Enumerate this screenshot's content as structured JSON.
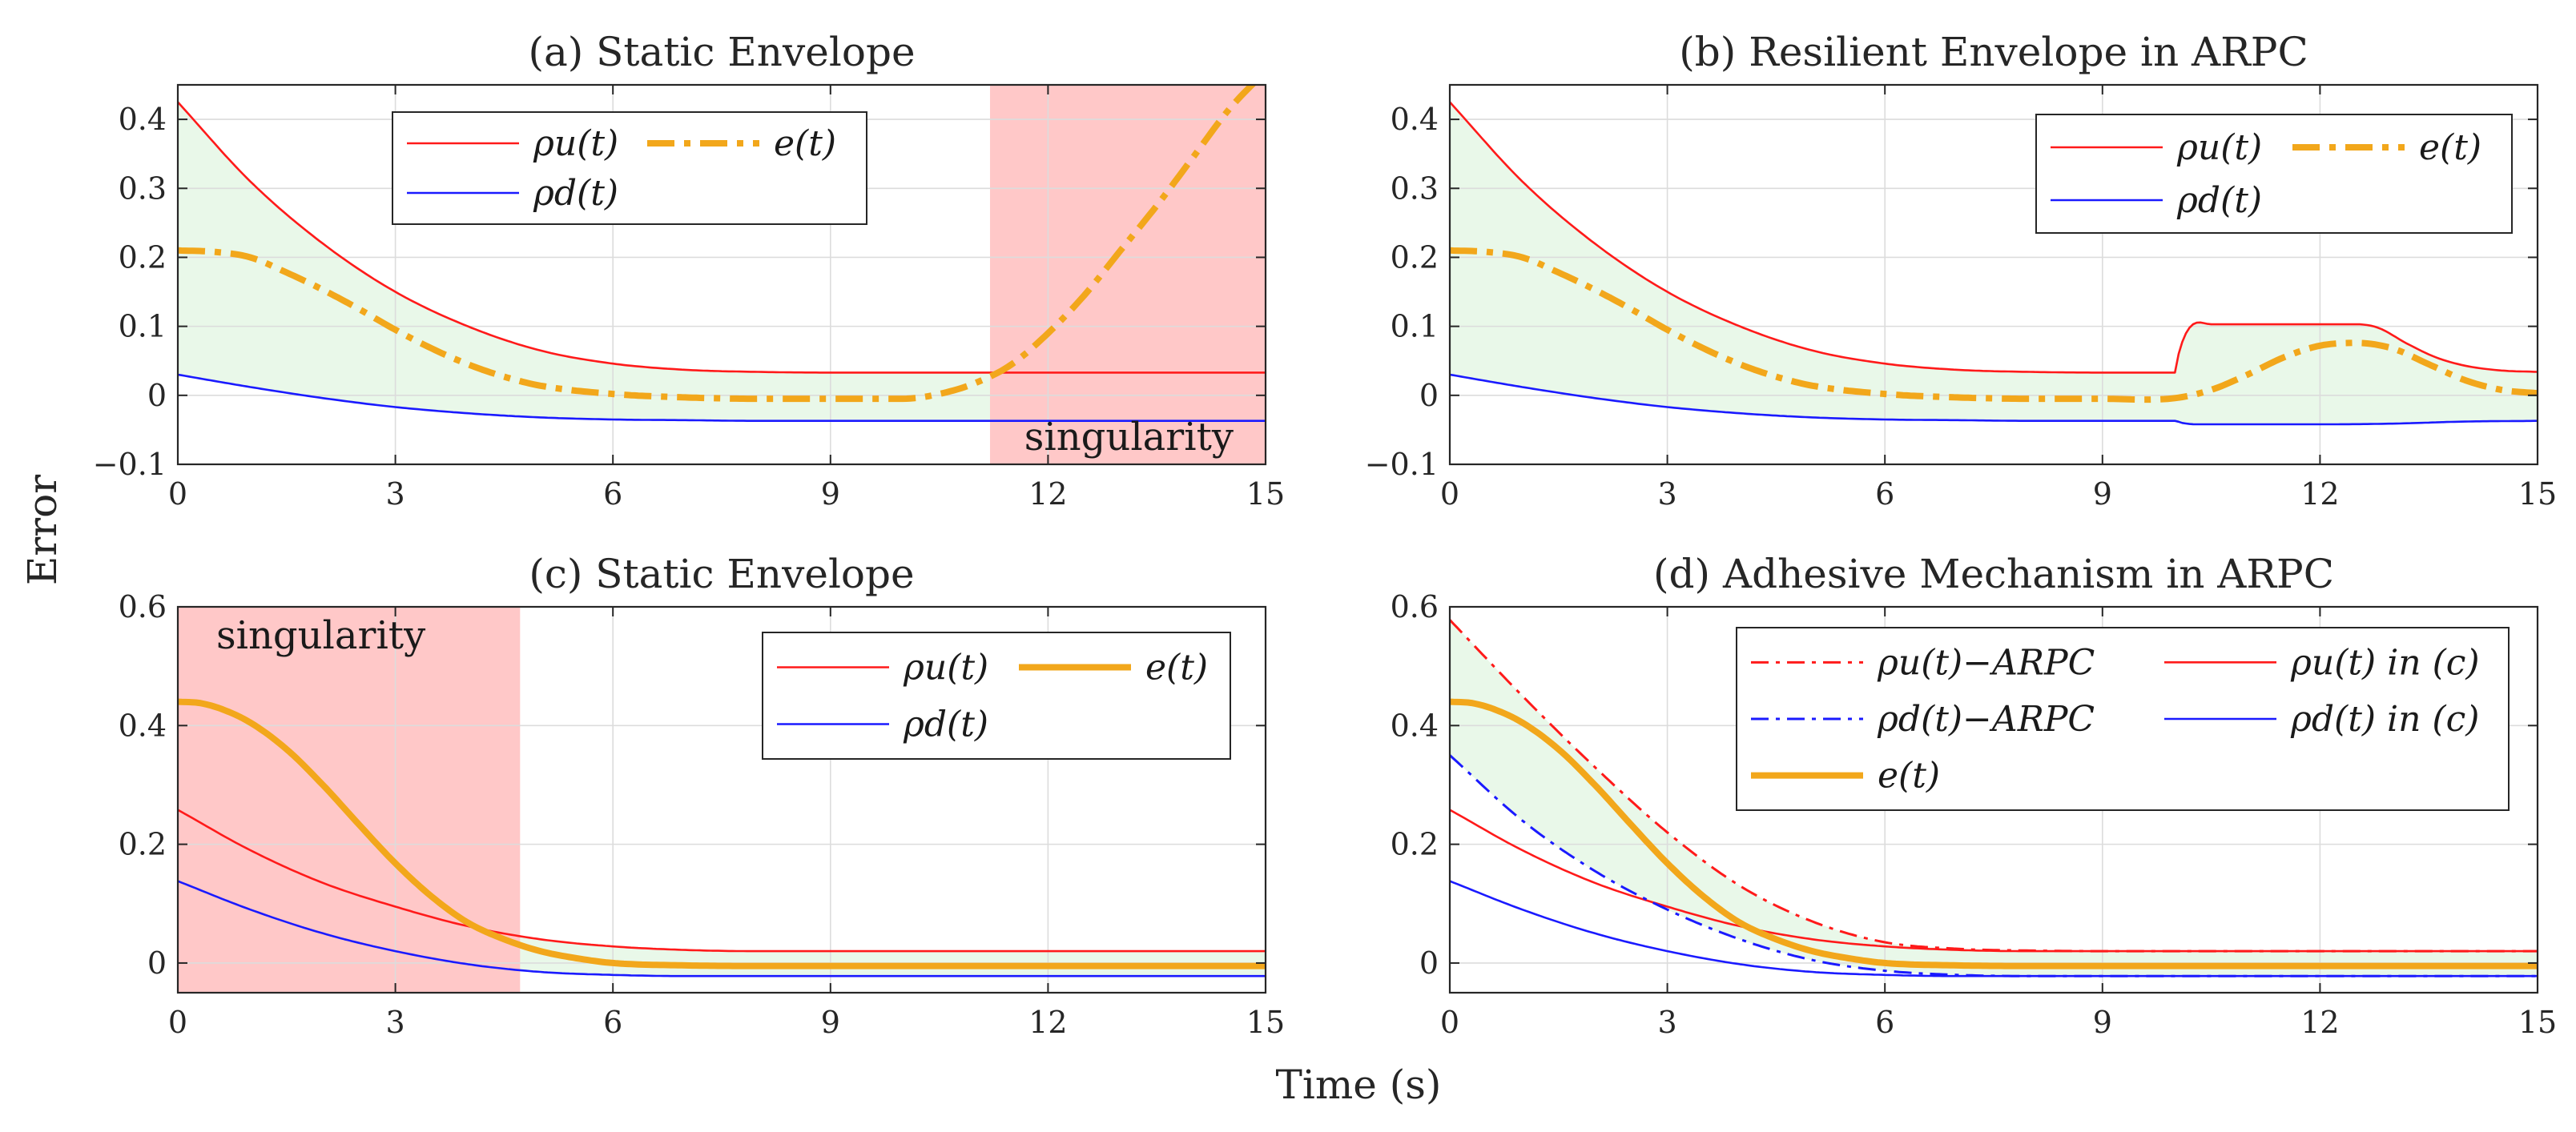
{
  "figure": {
    "ylabel": "Error",
    "xlabel": "Time (s)"
  },
  "colors": {
    "red": "#ff1a1a",
    "blue": "#1a1aff",
    "orange": "#f2a71b",
    "green_fill": "#e9f8e9",
    "singular_fill": "#ffc8c8"
  },
  "chart_data": [
    {
      "id": "a",
      "type": "line",
      "title": "(a) Static Envelope",
      "xlim": [
        0,
        15
      ],
      "ylim": [
        -0.1,
        0.45
      ],
      "xticks": [
        0,
        3,
        6,
        9,
        12,
        15
      ],
      "yticks": [
        -0.1,
        0,
        0.1,
        0.2,
        0.3,
        0.4
      ],
      "ytick_labels": [
        "−0.1",
        "0",
        "0.1",
        "0.2",
        "0.3",
        "0.4"
      ],
      "singularity": {
        "x0": 11.2,
        "x1": 15,
        "label": "singularity",
        "label_pos": "bottom-right"
      },
      "legend": {
        "position": "top-center",
        "entries": [
          [
            "ρu(t)",
            "e(t)"
          ],
          [
            "ρd(t)"
          ]
        ]
      },
      "series": [
        {
          "name": "ρu(t)",
          "color": "red",
          "style": "thin",
          "x": [
            0,
            1,
            2,
            3,
            4,
            5,
            6,
            7,
            8,
            9,
            10,
            11,
            12,
            13,
            14,
            15
          ],
          "y": [
            0.425,
            0.31,
            0.22,
            0.15,
            0.1,
            0.065,
            0.046,
            0.037,
            0.034,
            0.033,
            0.033,
            0.033,
            0.033,
            0.033,
            0.033,
            0.033
          ]
        },
        {
          "name": "ρd(t)",
          "color": "blue",
          "style": "thin",
          "x": [
            0,
            1,
            2,
            3,
            4,
            5,
            6,
            7,
            8,
            9,
            10,
            11,
            12,
            13,
            14,
            15
          ],
          "y": [
            0.03,
            0.012,
            -0.004,
            -0.017,
            -0.026,
            -0.032,
            -0.035,
            -0.036,
            -0.037,
            -0.037,
            -0.037,
            -0.037,
            -0.037,
            -0.037,
            -0.037,
            -0.037
          ]
        },
        {
          "name": "e(t)",
          "color": "orange",
          "style": "dashdot-thick",
          "x": [
            0,
            0.5,
            1,
            1.5,
            2,
            2.5,
            3,
            3.5,
            4,
            4.5,
            5,
            6,
            7,
            8,
            9,
            10,
            10.5,
            11,
            11.5,
            12,
            12.5,
            13,
            13.5,
            14,
            14.5,
            15
          ],
          "y": [
            0.21,
            0.208,
            0.2,
            0.178,
            0.153,
            0.125,
            0.095,
            0.068,
            0.045,
            0.027,
            0.014,
            0.002,
            -0.003,
            -0.005,
            -0.005,
            -0.005,
            0.002,
            0.018,
            0.045,
            0.09,
            0.145,
            0.21,
            0.275,
            0.345,
            0.415,
            0.47
          ]
        }
      ]
    },
    {
      "id": "b",
      "type": "line",
      "title": "(b) Resilient Envelope in ARPC",
      "xlim": [
        0,
        15
      ],
      "ylim": [
        -0.1,
        0.45
      ],
      "xticks": [
        0,
        3,
        6,
        9,
        12,
        15
      ],
      "yticks": [
        -0.1,
        0,
        0.1,
        0.2,
        0.3,
        0.4
      ],
      "ytick_labels": [
        "−0.1",
        "0",
        "0.1",
        "0.2",
        "0.3",
        "0.4"
      ],
      "legend": {
        "position": "top-right",
        "entries": [
          [
            "ρu(t)",
            "e(t)"
          ],
          [
            "ρd(t)"
          ]
        ]
      },
      "series": [
        {
          "name": "ρu(t)",
          "color": "red",
          "style": "thin",
          "x": [
            0,
            1,
            2,
            3,
            4,
            5,
            6,
            7,
            8,
            9,
            10,
            10.05,
            10.2,
            10.5,
            11,
            11.5,
            12,
            12.5,
            12.8,
            13.2,
            13.6,
            14,
            14.5,
            15
          ],
          "y": [
            0.425,
            0.31,
            0.22,
            0.15,
            0.1,
            0.065,
            0.046,
            0.037,
            0.034,
            0.033,
            0.033,
            0.06,
            0.098,
            0.103,
            0.103,
            0.103,
            0.103,
            0.103,
            0.098,
            0.075,
            0.055,
            0.043,
            0.036,
            0.034
          ]
        },
        {
          "name": "ρd(t)",
          "color": "blue",
          "style": "thin",
          "x": [
            0,
            1,
            2,
            3,
            4,
            5,
            6,
            7,
            8,
            9,
            10,
            10.1,
            10.3,
            11,
            12,
            13,
            14,
            15
          ],
          "y": [
            0.03,
            0.012,
            -0.004,
            -0.017,
            -0.026,
            -0.032,
            -0.035,
            -0.036,
            -0.037,
            -0.037,
            -0.037,
            -0.04,
            -0.042,
            -0.042,
            -0.042,
            -0.041,
            -0.038,
            -0.037
          ]
        },
        {
          "name": "e(t)",
          "color": "orange",
          "style": "dashdot-thick",
          "x": [
            0,
            0.5,
            1,
            1.5,
            2,
            2.5,
            3,
            3.5,
            4,
            4.5,
            5,
            6,
            7,
            8,
            9,
            10,
            10.5,
            11,
            11.5,
            12,
            12.5,
            13,
            13.5,
            14,
            14.5,
            15
          ],
          "y": [
            0.21,
            0.208,
            0.2,
            0.178,
            0.153,
            0.125,
            0.095,
            0.068,
            0.045,
            0.027,
            0.014,
            0.002,
            -0.003,
            -0.005,
            -0.005,
            -0.004,
            0.008,
            0.03,
            0.055,
            0.072,
            0.076,
            0.068,
            0.045,
            0.022,
            0.008,
            0.003
          ]
        }
      ]
    },
    {
      "id": "c",
      "type": "line",
      "title": "(c) Static Envelope",
      "xlim": [
        0,
        15
      ],
      "ylim": [
        -0.05,
        0.6
      ],
      "xticks": [
        0,
        3,
        6,
        9,
        12,
        15
      ],
      "yticks": [
        0,
        0.2,
        0.4,
        0.6
      ],
      "ytick_labels": [
        "0",
        "0.2",
        "0.4",
        "0.6"
      ],
      "singularity": {
        "x0": 0,
        "x1": 4.72,
        "label": "singularity",
        "label_pos": "top-left"
      },
      "legend": {
        "position": "top-right",
        "entries": [
          [
            "ρu(t)",
            "e(t)"
          ],
          [
            "ρd(t)"
          ]
        ]
      },
      "series": [
        {
          "name": "ρu(t)",
          "color": "red",
          "style": "thin",
          "x": [
            0,
            1,
            2,
            3,
            4,
            5,
            6,
            7,
            8,
            9,
            10,
            12,
            15
          ],
          "y": [
            0.258,
            0.19,
            0.135,
            0.095,
            0.062,
            0.04,
            0.028,
            0.022,
            0.02,
            0.02,
            0.02,
            0.02,
            0.02
          ]
        },
        {
          "name": "ρd(t)",
          "color": "blue",
          "style": "thin",
          "x": [
            0,
            1,
            2,
            3,
            4,
            5,
            6,
            7,
            8,
            9,
            10,
            12,
            15
          ],
          "y": [
            0.138,
            0.09,
            0.05,
            0.02,
            -0.002,
            -0.015,
            -0.02,
            -0.022,
            -0.022,
            -0.022,
            -0.022,
            -0.022,
            -0.022
          ]
        },
        {
          "name": "e(t)",
          "color": "orange",
          "style": "solid-thick",
          "x": [
            0,
            0.3,
            0.6,
            1,
            1.5,
            2,
            2.5,
            3,
            3.5,
            4,
            4.5,
            5,
            5.5,
            6,
            7,
            8,
            9,
            10,
            12,
            15
          ],
          "y": [
            0.44,
            0.438,
            0.428,
            0.405,
            0.36,
            0.3,
            0.233,
            0.168,
            0.112,
            0.068,
            0.04,
            0.02,
            0.008,
            0.0,
            -0.004,
            -0.005,
            -0.005,
            -0.005,
            -0.005,
            -0.005
          ]
        }
      ]
    },
    {
      "id": "d",
      "type": "line",
      "title": "(d) Adhesive Mechanism in ARPC",
      "xlim": [
        0,
        15
      ],
      "ylim": [
        -0.05,
        0.6
      ],
      "xticks": [
        0,
        3,
        6,
        9,
        12,
        15
      ],
      "yticks": [
        0,
        0.2,
        0.4,
        0.6
      ],
      "ytick_labels": [
        "0",
        "0.2",
        "0.4",
        "0.6"
      ],
      "legend": {
        "position": "top-right",
        "entries": [
          [
            "ρu(t)−ARPC",
            "ρu(t) in (c)"
          ],
          [
            "ρd(t)−ARPC",
            "ρd(t) in (c)"
          ],
          [
            "e(t)"
          ]
        ]
      },
      "series": [
        {
          "name": "ρu(t)−ARPC",
          "color": "red",
          "style": "dashdot-thin",
          "x": [
            0,
            1,
            2,
            3,
            4,
            5,
            6,
            7,
            8,
            9,
            10,
            12,
            15
          ],
          "y": [
            0.578,
            0.45,
            0.33,
            0.22,
            0.13,
            0.07,
            0.035,
            0.024,
            0.021,
            0.02,
            0.02,
            0.02,
            0.02
          ]
        },
        {
          "name": "ρu(t) in (c)",
          "color": "red",
          "style": "thin",
          "x": [
            0,
            1,
            2,
            3,
            4,
            5,
            6,
            7,
            8,
            9,
            10,
            12,
            15
          ],
          "y": [
            0.258,
            0.19,
            0.135,
            0.095,
            0.062,
            0.04,
            0.028,
            0.022,
            0.02,
            0.02,
            0.02,
            0.02,
            0.02
          ]
        },
        {
          "name": "ρd(t)−ARPC",
          "color": "blue",
          "style": "dashdot-thin",
          "x": [
            0,
            1,
            2,
            3,
            4,
            5,
            6,
            7,
            8,
            9,
            10,
            12,
            15
          ],
          "y": [
            0.35,
            0.24,
            0.155,
            0.09,
            0.04,
            0.005,
            -0.013,
            -0.02,
            -0.022,
            -0.022,
            -0.022,
            -0.022,
            -0.022
          ]
        },
        {
          "name": "ρd(t) in (c)",
          "color": "blue",
          "style": "thin",
          "x": [
            0,
            1,
            2,
            3,
            4,
            5,
            6,
            7,
            8,
            9,
            10,
            12,
            15
          ],
          "y": [
            0.138,
            0.09,
            0.05,
            0.02,
            -0.002,
            -0.015,
            -0.02,
            -0.022,
            -0.022,
            -0.022,
            -0.022,
            -0.022,
            -0.022
          ]
        },
        {
          "name": "e(t)",
          "color": "orange",
          "style": "solid-thick",
          "x": [
            0,
            0.3,
            0.6,
            1,
            1.5,
            2,
            2.5,
            3,
            3.5,
            4,
            4.5,
            5,
            5.5,
            6,
            7,
            8,
            9,
            10,
            12,
            15
          ],
          "y": [
            0.44,
            0.438,
            0.428,
            0.405,
            0.36,
            0.3,
            0.233,
            0.168,
            0.112,
            0.068,
            0.04,
            0.02,
            0.008,
            0.0,
            -0.004,
            -0.005,
            -0.005,
            -0.005,
            -0.005,
            -0.005
          ]
        }
      ]
    }
  ]
}
